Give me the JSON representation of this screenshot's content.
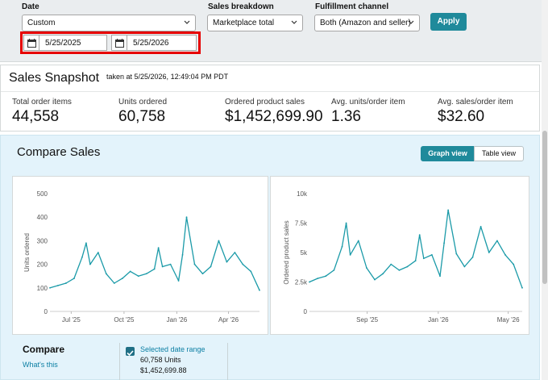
{
  "filters": {
    "date_label": "Date",
    "date_select": "Custom",
    "start_date": "5/25/2025",
    "end_date": "5/25/2026",
    "sales_breakdown_label": "Sales breakdown",
    "sales_breakdown_value": "Marketplace total",
    "fulfillment_label": "Fulfillment channel",
    "fulfillment_value": "Both (Amazon and seller)",
    "apply_label": "Apply"
  },
  "snapshot": {
    "title": "Sales Snapshot",
    "taken": "taken at 5/25/2026, 12:49:04 PM PDT",
    "metrics": [
      {
        "label": "Total order items",
        "value": "44,558"
      },
      {
        "label": "Units ordered",
        "value": "60,758"
      },
      {
        "label": "Ordered product sales",
        "value": "$1,452,699.90"
      },
      {
        "label": "Avg. units/order item",
        "value": "1.36"
      },
      {
        "label": "Avg. sales/order item",
        "value": "$32.60"
      }
    ]
  },
  "compare_sales": {
    "title": "Compare Sales",
    "graph_view_label": "Graph view",
    "table_view_label": "Table view",
    "compare_title": "Compare",
    "whats_this": "What's this",
    "selected_range_label": "Selected date range",
    "units_line": "60,758 Units",
    "sales_line": "$1,452,699.88"
  },
  "colors": {
    "accent": "#1f8a9b",
    "line": "#1a9aa8",
    "highlight": "#e60000"
  },
  "chart_data": [
    {
      "type": "line",
      "ylabel": "Units ordered",
      "ylim": [
        0,
        500
      ],
      "yticks": [
        "0",
        "100",
        "200",
        "300",
        "400",
        "500"
      ],
      "xticks": [
        "Jul '25",
        "Oct '25",
        "Jan '26",
        "Apr '26"
      ],
      "x_range": [
        "2025-05-25",
        "2026-05-25"
      ],
      "series": [
        {
          "x": [
            "2025-05-25",
            "2025-06-08",
            "2025-06-22",
            "2025-07-06",
            "2025-07-20",
            "2025-07-27",
            "2025-08-03",
            "2025-08-17",
            "2025-08-31",
            "2025-09-14",
            "2025-09-28",
            "2025-10-12",
            "2025-10-26",
            "2025-11-09",
            "2025-11-23",
            "2025-11-30",
            "2025-12-07",
            "2025-12-21",
            "2026-01-04",
            "2026-01-11",
            "2026-01-18",
            "2026-02-01",
            "2026-02-15",
            "2026-03-01",
            "2026-03-15",
            "2026-03-29",
            "2026-04-12",
            "2026-04-26",
            "2026-05-10",
            "2026-05-25"
          ],
          "values": [
            100,
            110,
            120,
            140,
            230,
            290,
            200,
            250,
            160,
            120,
            140,
            170,
            150,
            160,
            180,
            270,
            190,
            200,
            130,
            240,
            400,
            200,
            160,
            190,
            300,
            210,
            250,
            200,
            170,
            90
          ]
        }
      ]
    },
    {
      "type": "line",
      "ylabel": "Ordered product sales",
      "ylim": [
        0,
        10000
      ],
      "yticks": [
        "0",
        "2.5k",
        "5k",
        "7.5k",
        "10k"
      ],
      "xticks": [
        "Sep '25",
        "Jan '26",
        "May '26"
      ],
      "x_range": [
        "2025-05-25",
        "2026-05-25"
      ],
      "series": [
        {
          "x": [
            "2025-05-25",
            "2025-06-08",
            "2025-06-22",
            "2025-07-06",
            "2025-07-20",
            "2025-07-27",
            "2025-08-03",
            "2025-08-17",
            "2025-08-31",
            "2025-09-14",
            "2025-09-28",
            "2025-10-12",
            "2025-10-26",
            "2025-11-09",
            "2025-11-23",
            "2025-11-30",
            "2025-12-07",
            "2025-12-21",
            "2026-01-04",
            "2026-01-11",
            "2026-01-18",
            "2026-02-01",
            "2026-02-15",
            "2026-03-01",
            "2026-03-15",
            "2026-03-29",
            "2026-04-12",
            "2026-04-26",
            "2026-05-10",
            "2026-05-25"
          ],
          "values": [
            2500,
            2800,
            3000,
            3500,
            5500,
            7500,
            4800,
            6000,
            3700,
            2700,
            3200,
            4000,
            3500,
            3800,
            4300,
            6500,
            4500,
            4800,
            3000,
            5800,
            8600,
            4900,
            3800,
            4600,
            7200,
            5000,
            6000,
            4800,
            4000,
            2000
          ]
        }
      ]
    }
  ]
}
